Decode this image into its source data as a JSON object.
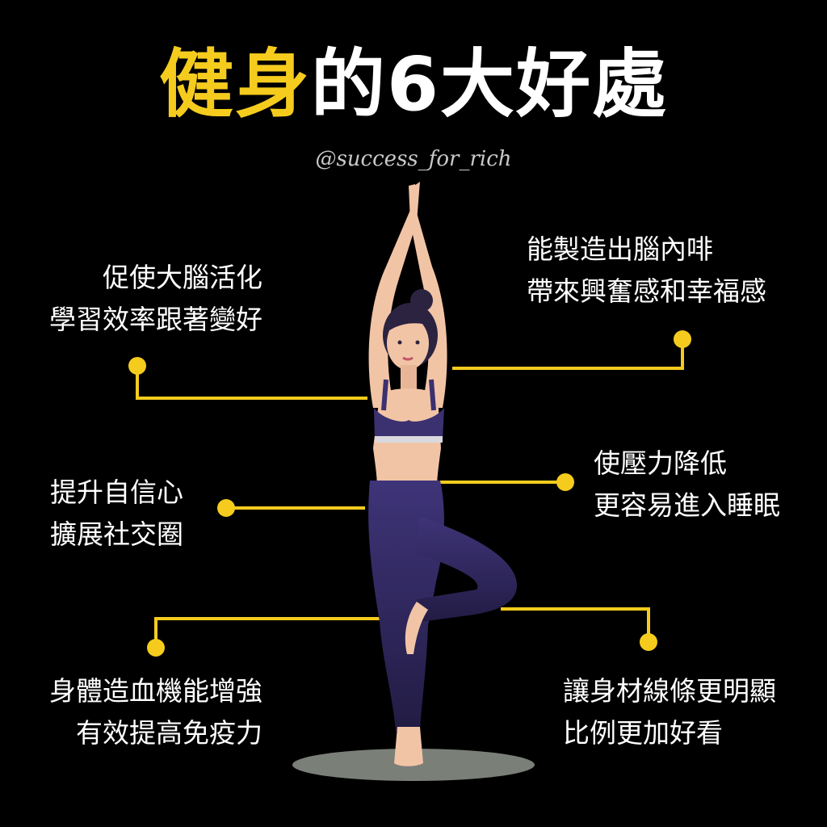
{
  "title": {
    "highlight": "健身",
    "rest": "的6大好處"
  },
  "watermark": "@success_for_rich",
  "colors": {
    "accent": "#f5cc1e",
    "background": "#000000",
    "outfit": "#3b3170",
    "skin": "#f2c4a6"
  },
  "benefits": [
    {
      "line1": "促使大腦活化",
      "line2": "學習效率跟著變好"
    },
    {
      "line1": "能製造出腦內啡",
      "line2": "帶來興奮感和幸福感"
    },
    {
      "line1": "提升自信心",
      "line2": "擴展社交圈"
    },
    {
      "line1": "使壓力降低",
      "line2": "更容易進入睡眠"
    },
    {
      "line1": "身體造血機能增強",
      "line2": "有效提高免疫力"
    },
    {
      "line1": "讓身材線條更明顯",
      "line2": "比例更加好看"
    }
  ]
}
